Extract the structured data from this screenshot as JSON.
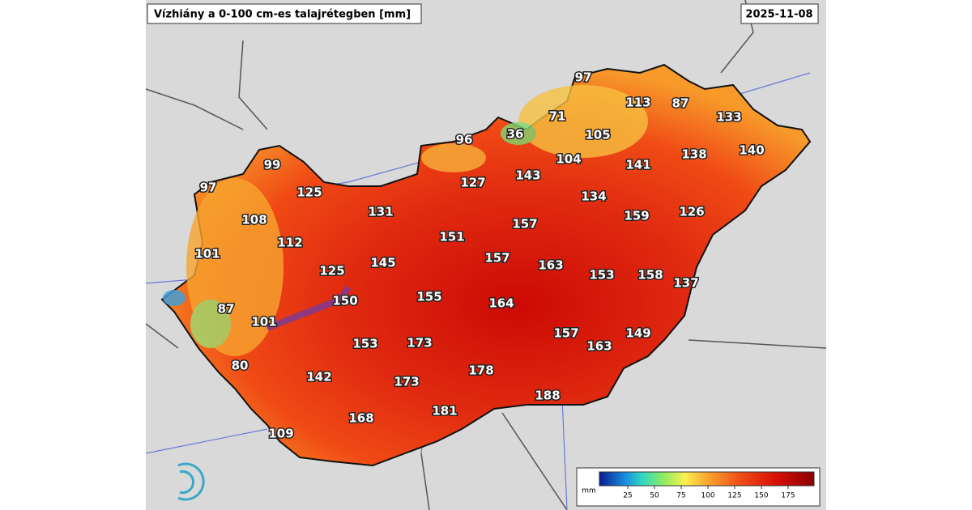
{
  "header": {
    "title": "Vízhiány a 0-100 cm-es talajrétegben [mm]",
    "date": "2025-11-08"
  },
  "stations": [
    {
      "label": "97"
    },
    {
      "label": "113"
    },
    {
      "label": "87"
    },
    {
      "label": "133"
    },
    {
      "label": "71"
    },
    {
      "label": "36"
    },
    {
      "label": "105"
    },
    {
      "label": "96"
    },
    {
      "label": "104"
    },
    {
      "label": "138"
    },
    {
      "label": "140"
    },
    {
      "label": "141"
    },
    {
      "label": "143"
    },
    {
      "label": "127"
    },
    {
      "label": "99"
    },
    {
      "label": "97"
    },
    {
      "label": "125"
    },
    {
      "label": "134"
    },
    {
      "label": "131"
    },
    {
      "label": "157"
    },
    {
      "label": "159"
    },
    {
      "label": "126"
    },
    {
      "label": "108"
    },
    {
      "label": "151"
    },
    {
      "label": "112"
    },
    {
      "label": "101"
    },
    {
      "label": "157"
    },
    {
      "label": "163"
    },
    {
      "label": "145"
    },
    {
      "label": "125"
    },
    {
      "label": "153"
    },
    {
      "label": "158"
    },
    {
      "label": "137"
    },
    {
      "label": "155"
    },
    {
      "label": "150"
    },
    {
      "label": "164"
    },
    {
      "label": "87"
    },
    {
      "label": "101"
    },
    {
      "label": "157"
    },
    {
      "label": "149"
    },
    {
      "label": "153"
    },
    {
      "label": "173"
    },
    {
      "label": "163"
    },
    {
      "label": "80"
    },
    {
      "label": "178"
    },
    {
      "label": "142"
    },
    {
      "label": "173"
    },
    {
      "label": "188"
    },
    {
      "label": "181"
    },
    {
      "label": "168"
    },
    {
      "label": "109"
    }
  ],
  "legend": {
    "unit": "mm",
    "ticks": [
      "25",
      "50",
      "75",
      "100",
      "125",
      "150",
      "175"
    ]
  }
}
